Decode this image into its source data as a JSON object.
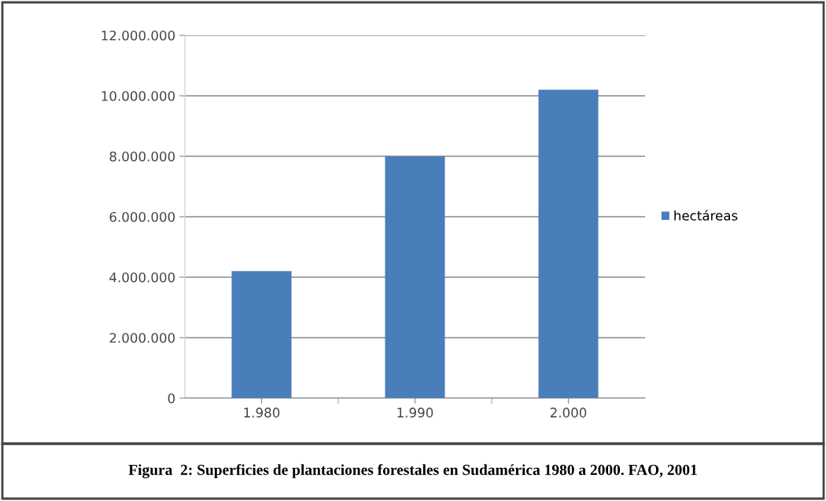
{
  "chart_data": {
    "type": "bar",
    "categories": [
      "1.980",
      "1.990",
      "2.000"
    ],
    "series": [
      {
        "name": "hectáreas",
        "color": "#4a7ebb",
        "values": [
          4200000,
          8000000,
          10200000
        ]
      }
    ],
    "ylim": [
      0,
      12000000
    ],
    "yticks": [
      {
        "value": 0,
        "label": "0"
      },
      {
        "value": 2000000,
        "label": "2.000.000"
      },
      {
        "value": 4000000,
        "label": "4.000.000"
      },
      {
        "value": 6000000,
        "label": "6.000.000"
      },
      {
        "value": 8000000,
        "label": "8.000.000"
      },
      {
        "value": 10000000,
        "label": "10.000.000"
      },
      {
        "value": 12000000,
        "label": "12.000.000"
      }
    ],
    "grid": "y",
    "legend": "right",
    "annotations": [
      "Figura  2: Superficies de plantaciones forestales en Sudamérica 1980 a 2000. FAO, 2001"
    ]
  }
}
